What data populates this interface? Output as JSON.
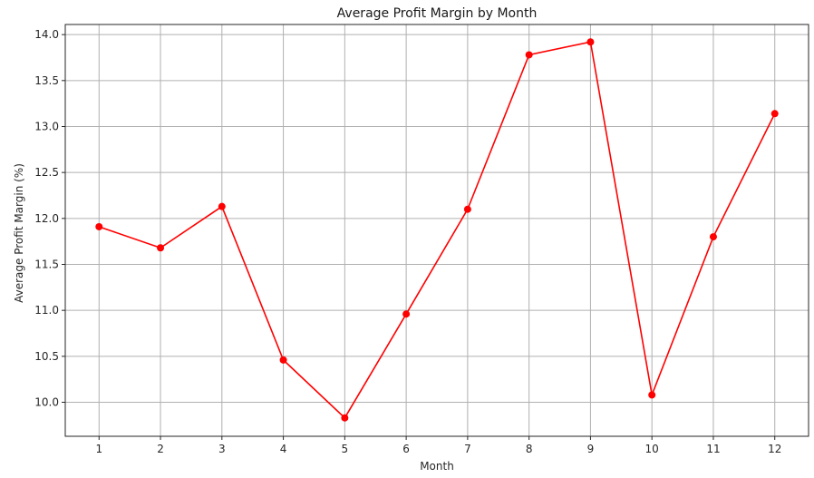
{
  "chart_data": {
    "type": "line",
    "title": "Average Profit Margin by Month",
    "xlabel": "Month",
    "ylabel": "Average Profit Margin (%)",
    "x": [
      1,
      2,
      3,
      4,
      5,
      6,
      7,
      8,
      9,
      10,
      11,
      12
    ],
    "x_tick_labels": [
      "1",
      "2",
      "3",
      "4",
      "5",
      "6",
      "7",
      "8",
      "9",
      "10",
      "11",
      "12"
    ],
    "y_ticks": [
      10.0,
      10.5,
      11.0,
      11.5,
      12.0,
      12.5,
      13.0,
      13.5,
      14.0
    ],
    "y_tick_labels": [
      "10.0",
      "10.5",
      "11.0",
      "11.5",
      "12.0",
      "12.5",
      "13.0",
      "13.5",
      "14.0"
    ],
    "xlim": [
      0.45,
      12.55
    ],
    "ylim": [
      9.63,
      14.11
    ],
    "grid": true,
    "series": [
      {
        "values": [
          11.91,
          11.68,
          12.13,
          10.46,
          9.83,
          10.96,
          12.1,
          13.78,
          13.92,
          10.08,
          11.8,
          13.14
        ],
        "color": "#ff0000",
        "marker": "circle"
      }
    ]
  }
}
